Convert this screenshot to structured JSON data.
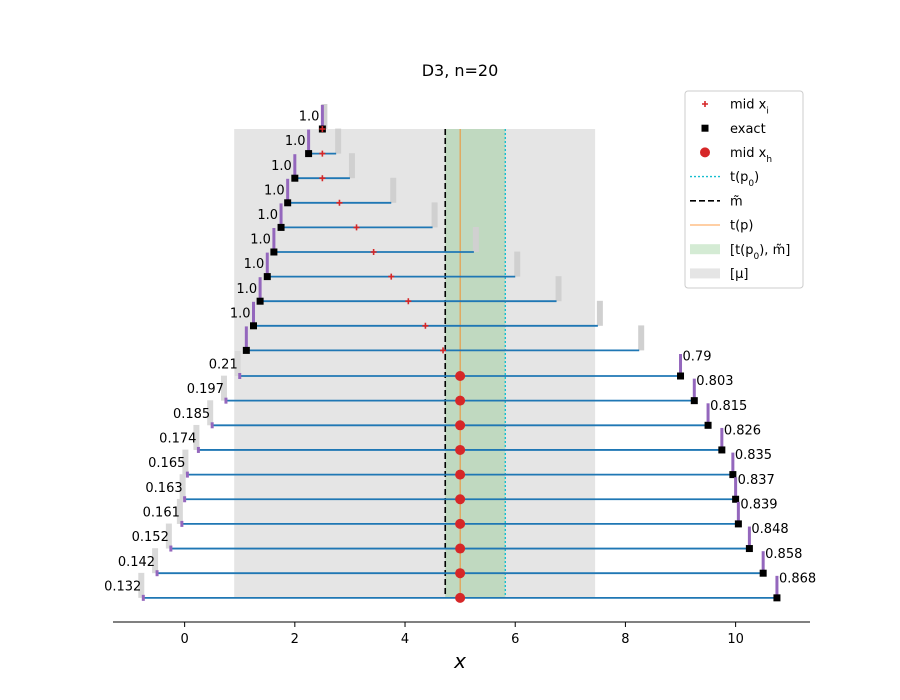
{
  "chart_data": {
    "type": "interval-plot",
    "title": "D3, n=20",
    "xlabel": "x",
    "xlim": [
      -1.3,
      11.35
    ],
    "xticks": [
      0,
      2,
      4,
      6,
      8,
      10
    ],
    "mu_range": [
      0.9,
      7.45
    ],
    "m_tilde": 4.73,
    "t_p": 5.0,
    "t_p0": 5.82,
    "green_range": [
      4.73,
      5.82
    ],
    "colors": {
      "grey_band": "#e5e5e5",
      "green_band": "#c0d9c0",
      "line": "#1f77b4",
      "purple": "#9467bd",
      "mid_xi": "#d62728",
      "mid_xh": "#d62728",
      "exact": "#000000",
      "t_p0": "#17becf",
      "t_p": "#ff7f0e",
      "m_tilde": "#000000"
    },
    "upper_rows": [
      {
        "left": 2.5,
        "right": 2.5,
        "mid": 2.5,
        "label": "1.0"
      },
      {
        "left": 2.25,
        "right": 2.75,
        "mid": 2.5,
        "label": "1.0"
      },
      {
        "left": 2.0,
        "right": 3.0,
        "mid": 2.5,
        "label": "1.0"
      },
      {
        "left": 1.87,
        "right": 3.75,
        "mid": 2.81,
        "label": "1.0"
      },
      {
        "left": 1.75,
        "right": 4.5,
        "mid": 3.12,
        "label": "1.0"
      },
      {
        "left": 1.62,
        "right": 5.25,
        "mid": 3.43,
        "label": "1.0"
      },
      {
        "left": 1.5,
        "right": 6.0,
        "mid": 3.75,
        "label": "1.0"
      },
      {
        "left": 1.37,
        "right": 6.75,
        "mid": 4.06,
        "label": "1.0"
      },
      {
        "left": 1.25,
        "right": 7.5,
        "mid": 4.37,
        "label": "1.0"
      },
      {
        "left": 1.12,
        "right": 8.25,
        "mid": 4.69,
        "label": ""
      }
    ],
    "lower_rows": [
      {
        "left": 1.0,
        "right": 9.0,
        "left_label": "0.21",
        "right_label": "0.79"
      },
      {
        "left": 0.75,
        "right": 9.25,
        "left_label": "0.197",
        "right_label": "0.803"
      },
      {
        "left": 0.5,
        "right": 9.5,
        "left_label": "0.185",
        "right_label": "0.815"
      },
      {
        "left": 0.25,
        "right": 9.75,
        "left_label": "0.174",
        "right_label": "0.826"
      },
      {
        "left": 0.05,
        "right": 9.95,
        "left_label": "0.165",
        "right_label": "0.835"
      },
      {
        "left": 0.0,
        "right": 10.0,
        "left_label": "0.163",
        "right_label": "0.837"
      },
      {
        "left": -0.05,
        "right": 10.05,
        "left_label": "0.161",
        "right_label": "0.839"
      },
      {
        "left": -0.25,
        "right": 10.25,
        "left_label": "0.152",
        "right_label": "0.848"
      },
      {
        "left": -0.5,
        "right": 10.5,
        "left_label": "0.142",
        "right_label": "0.858"
      },
      {
        "left": -0.75,
        "right": 10.75,
        "left_label": "0.132",
        "right_label": "0.868"
      }
    ],
    "mid_xh_value": 5.0,
    "legend": {
      "position": "top-right",
      "entries": [
        {
          "key": "mid_xi",
          "label": "mid x",
          "sub": "i"
        },
        {
          "key": "exact",
          "label": "exact",
          "sub": ""
        },
        {
          "key": "mid_xh",
          "label": "mid x",
          "sub": "h"
        },
        {
          "key": "t_p0",
          "label": "t(p",
          "sub": "0",
          "suffix": ")"
        },
        {
          "key": "m_tilde",
          "label": "m̃",
          "sub": ""
        },
        {
          "key": "t_p",
          "label": "t(p)",
          "sub": ""
        },
        {
          "key": "green",
          "label": "[t(p",
          "sub": "0",
          "suffix": "), m̃]"
        },
        {
          "key": "grey",
          "label": "[μ]",
          "sub": ""
        }
      ]
    }
  }
}
